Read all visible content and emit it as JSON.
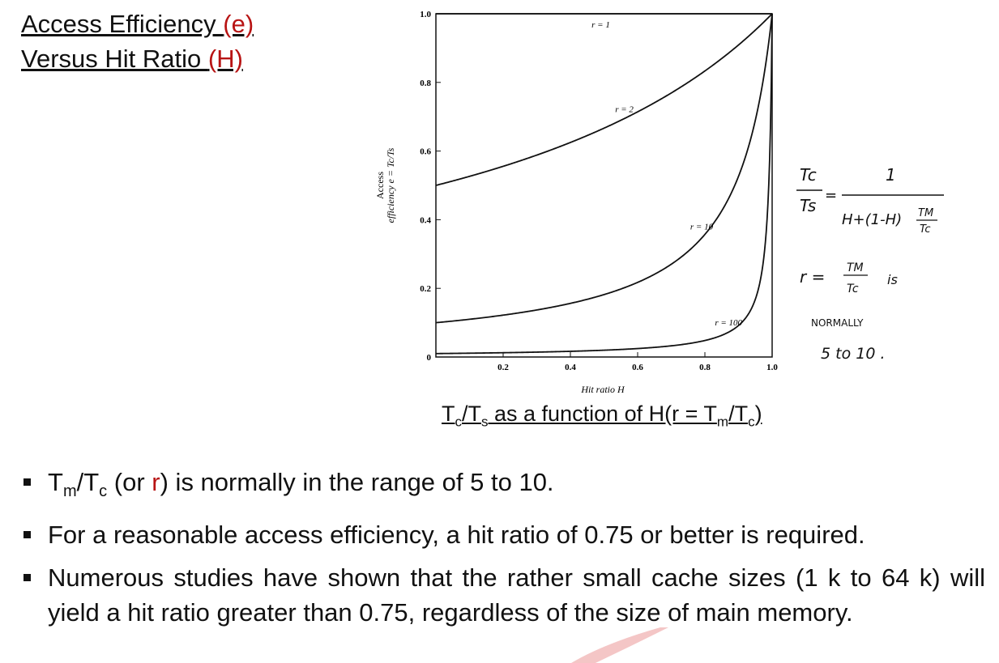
{
  "slide": {
    "title_line1": "Access Efficiency ",
    "title_hl1": "(e)",
    "title_line2": "Versus Hit Ratio ",
    "title_hl2": "(H)"
  },
  "caption": {
    "t1": "T",
    "s1": "c",
    "t2": "/T",
    "s2": "s",
    "t3": " as a function of H(r = T",
    "s3": "m",
    "t4": "/T",
    "s4": "c",
    "t5": ")"
  },
  "handwritten": {
    "frac_left_num": "Tc",
    "frac_left_den": "Ts",
    "equals": "=",
    "frac_right_num": "1",
    "frac_right_den": "H+(1-H)",
    "frac_inner_num": "TM",
    "frac_inner_den": "Tc",
    "r_eq": "r =",
    "r_num": "TM",
    "r_den": "Tc",
    "is": "is",
    "normally": "NORMALLY",
    "range": "5  to  10 ."
  },
  "bullets": [
    {
      "p1": "T",
      "s1": "m",
      "p2": "/T",
      "s2": "c",
      "p3": " (or ",
      "hl": "r",
      "p4": ") is normally in the range of 5 to 10."
    },
    {
      "text": "For a reasonable access efficiency, a hit ratio of 0.75 or better is required."
    },
    {
      "text": "Numerous studies have shown that the rather small cache sizes (1 k to 64 k) will yield a hit ratio greater than 0.75, regardless of the size of main memory."
    }
  ],
  "chart_data": {
    "type": "line",
    "xlabel": "Hit ratio H",
    "ylabel_line1": "Access",
    "ylabel_line2": "efficiency e = Tc/Ts",
    "xlim": [
      0,
      1.0
    ],
    "ylim": [
      0,
      1.0
    ],
    "x_ticks": [
      "0.2",
      "0.4",
      "0.6",
      "0.8",
      "1.0"
    ],
    "y_ticks": [
      "0",
      "0.2",
      "0.4",
      "0.6",
      "0.8",
      "1.0"
    ],
    "grid": false,
    "series": [
      {
        "name": "r = 1",
        "r": 1,
        "x": [
          0,
          0.2,
          0.4,
          0.6,
          0.8,
          1.0
        ],
        "y": [
          1,
          1,
          1,
          1,
          1,
          1
        ]
      },
      {
        "name": "r = 2",
        "r": 2,
        "x": [
          0,
          0.2,
          0.4,
          0.6,
          0.8,
          1.0
        ],
        "y": [
          0.5,
          0.556,
          0.625,
          0.714,
          0.833,
          1.0
        ]
      },
      {
        "name": "r = 10",
        "r": 10,
        "x": [
          0,
          0.2,
          0.4,
          0.6,
          0.8,
          0.9,
          1.0
        ],
        "y": [
          0.1,
          0.122,
          0.156,
          0.217,
          0.357,
          0.526,
          1.0
        ]
      },
      {
        "name": "r = 100",
        "r": 100,
        "x": [
          0,
          0.2,
          0.4,
          0.6,
          0.8,
          0.9,
          0.95,
          0.98,
          1.0
        ],
        "y": [
          0.01,
          0.012,
          0.016,
          0.025,
          0.048,
          0.092,
          0.168,
          0.336,
          1.0
        ]
      }
    ]
  }
}
